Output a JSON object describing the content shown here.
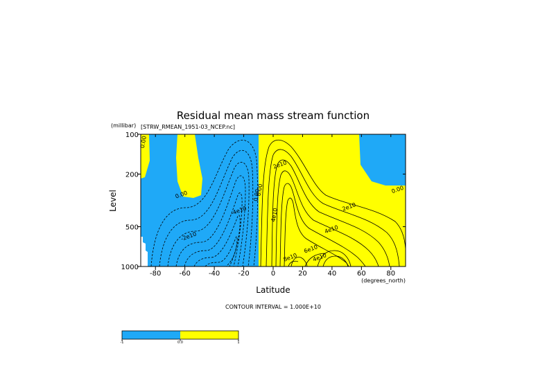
{
  "chart_data": {
    "type": "contour",
    "title": "Residual mean mass stream function",
    "subtitle": "[STRW_RMEAN_1951-03_NCEP.nc]",
    "xlabel": "Latitude",
    "x_units": "(degrees_north)",
    "ylabel": "Level",
    "y_units": "(millibar)",
    "y_scale": "log",
    "y_inverted": true,
    "xlim": [
      -90,
      90
    ],
    "ylim": [
      1000,
      100
    ],
    "x_ticks": [
      -80,
      -60,
      -40,
      -20,
      0,
      20,
      40,
      60,
      80
    ],
    "x_tick_labels": [
      "-80",
      "-60",
      "-40",
      "-20",
      "0",
      "20",
      "40",
      "60",
      "80"
    ],
    "y_ticks": [
      100,
      200,
      500,
      1000
    ],
    "y_tick_labels": [
      "100",
      "200",
      "500",
      "1000"
    ],
    "contour_interval_text": "CONTOUR INTERVAL = 1.000E+10",
    "contour_interval": 10000000000.0,
    "fill_colors": {
      "negative": "#1fa9f7",
      "positive": "#ffff00"
    },
    "contour_labels": [
      {
        "text": "0.00",
        "lat": -87,
        "p": 115
      },
      {
        "text": "0.00",
        "lat": -62,
        "p": 295
      },
      {
        "text": "-2e10",
        "lat": -57,
        "p": 610
      },
      {
        "text": "-4e10",
        "lat": -23,
        "p": 390
      },
      {
        "text": "0.00",
        "lat": -10,
        "p": 290
      },
      {
        "text": "0.00",
        "lat": -8,
        "p": 265
      },
      {
        "text": "2e10",
        "lat": 5,
        "p": 175
      },
      {
        "text": "4e10",
        "lat": 2,
        "p": 410
      },
      {
        "text": "2e10",
        "lat": 52,
        "p": 365
      },
      {
        "text": "4e10",
        "lat": 40,
        "p": 540
      },
      {
        "text": "0.00",
        "lat": 85,
        "p": 270
      },
      {
        "text": "6e10",
        "lat": 26,
        "p": 760
      },
      {
        "text": "8e10",
        "lat": 12,
        "p": 880
      },
      {
        "text": "4e10",
        "lat": 32,
        "p": 880
      }
    ],
    "colorbar": {
      "segments": [
        "#1fa9f7",
        "#ffff00"
      ],
      "tick_labels": [
        "-1",
        "0.0",
        "1"
      ]
    }
  }
}
